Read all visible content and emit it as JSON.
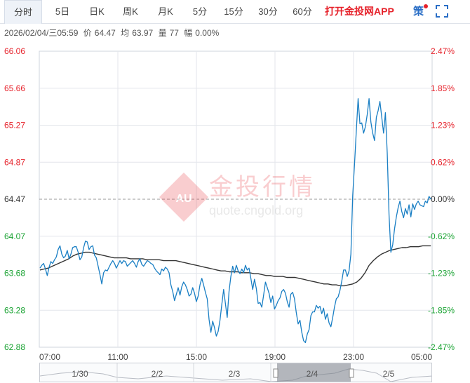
{
  "tabs": [
    {
      "label": "分时",
      "active": true
    },
    {
      "label": "5日",
      "active": false
    },
    {
      "label": "日K",
      "active": false
    },
    {
      "label": "周K",
      "active": false
    },
    {
      "label": "月K",
      "active": false
    },
    {
      "label": "5分",
      "active": false
    },
    {
      "label": "15分",
      "active": false
    },
    {
      "label": "30分",
      "active": false
    },
    {
      "label": "60分",
      "active": false
    }
  ],
  "promo_label": "打开金投网APP",
  "strategy_label": "策",
  "info": {
    "datetime": "2026/02/04/三05:59",
    "price_label": "价",
    "price": "64.47",
    "avg_label": "均",
    "avg": "63.97",
    "vol_label": "量",
    "vol": "77",
    "change_label": "幅",
    "change": "0.00%"
  },
  "watermark": {
    "text": "金投行情",
    "url": "quote.cngold.org",
    "logo_text": "AU"
  },
  "colors": {
    "up": "#e6212a",
    "down": "#1aa333",
    "line": "#1a7fc4",
    "avg": "#333333",
    "grid": "#e3e6eb"
  },
  "chart_data": {
    "type": "line",
    "base_price": 64.47,
    "ylim": [
      62.88,
      66.06
    ],
    "y_ticks_left": [
      "66.06",
      "65.66",
      "65.27",
      "64.87",
      "64.47",
      "64.07",
      "63.68",
      "63.28",
      "62.88"
    ],
    "y_ticks_right": [
      "2.47%",
      "1.85%",
      "1.23%",
      "0.62%",
      "0.00%",
      "-0.62%",
      "-1.23%",
      "-1.85%",
      "-2.47%"
    ],
    "x_ticks": [
      "07:00",
      "11:00",
      "15:00",
      "19:00",
      "23:00",
      "05:00"
    ],
    "series": [
      {
        "values": [
          63.73,
          63.76,
          63.78,
          63.72,
          63.65,
          63.74,
          63.8,
          63.78,
          63.82,
          63.85,
          63.93,
          63.97,
          63.88,
          63.84,
          63.86,
          63.92,
          63.83,
          63.88,
          63.95,
          63.96,
          63.96,
          63.9,
          63.82,
          63.85,
          63.95,
          64.02,
          64.01,
          63.93,
          63.96,
          63.97,
          63.87,
          63.84,
          63.75,
          63.66,
          63.56,
          63.68,
          63.71,
          63.7,
          63.74,
          63.78,
          63.81,
          63.78,
          63.73,
          63.77,
          63.81,
          63.78,
          63.81,
          63.8,
          63.75,
          63.77,
          63.79,
          63.81,
          63.78,
          63.74,
          63.8,
          63.83,
          63.77,
          63.75,
          63.78,
          63.81,
          63.8,
          63.78,
          63.77,
          63.73,
          63.7,
          63.68,
          63.66,
          63.72,
          63.7,
          63.74,
          63.72,
          63.68,
          63.55,
          63.48,
          63.38,
          63.45,
          63.52,
          63.44,
          63.53,
          63.58,
          63.55,
          63.5,
          63.43,
          63.45,
          63.52,
          63.46,
          63.37,
          63.43,
          63.55,
          63.62,
          63.55,
          63.47,
          63.4,
          63.18,
          63.04,
          63.16,
          63.09,
          63.0,
          63.05,
          63.17,
          63.34,
          63.5,
          63.35,
          63.2,
          63.48,
          63.64,
          63.75,
          63.68,
          63.76,
          63.7,
          63.67,
          63.72,
          63.68,
          63.76,
          63.71,
          63.73,
          63.62,
          63.5,
          63.61,
          63.51,
          63.35,
          63.36,
          63.31,
          63.44,
          63.58,
          63.52,
          63.46,
          63.36,
          63.43,
          63.29,
          63.33,
          63.38,
          63.41,
          63.48,
          63.5,
          63.46,
          63.37,
          63.31,
          63.45,
          63.47,
          63.4,
          63.25,
          63.13,
          63.17,
          63.04,
          62.95,
          62.93,
          63.02,
          63.07,
          63.22,
          63.26,
          63.26,
          63.33,
          63.3,
          63.32,
          63.24,
          63.3,
          63.18,
          63.24,
          63.14,
          63.1,
          63.2,
          63.31,
          63.4,
          63.42,
          63.49,
          63.59,
          63.71,
          63.71,
          63.64,
          63.7,
          63.88,
          64.51,
          64.85,
          65.2,
          65.55,
          65.28,
          65.29,
          65.18,
          65.25,
          65.38,
          65.55,
          65.3,
          65.18,
          65.1,
          65.35,
          65.42,
          65.52,
          65.35,
          65.18,
          65.4,
          64.97,
          64.3,
          63.9,
          63.98,
          64.15,
          64.28,
          64.38,
          64.45,
          64.34,
          64.27,
          64.37,
          64.31,
          64.41,
          64.28,
          64.42,
          64.36,
          64.42,
          64.45,
          64.41,
          64.4,
          64.39,
          64.45,
          64.43,
          64.5,
          64.47
        ]
      },
      {
        "values": [
          63.71,
          63.72,
          63.73,
          63.75,
          63.77,
          63.79,
          63.81,
          63.83,
          63.86,
          63.88,
          63.89,
          63.9,
          63.9,
          63.89,
          63.88,
          63.87,
          63.86,
          63.85,
          63.84,
          63.84,
          63.84,
          63.84,
          63.83,
          63.83,
          63.83,
          63.83,
          63.82,
          63.82,
          63.82,
          63.82,
          63.81,
          63.81,
          63.81,
          63.81,
          63.8,
          63.79,
          63.78,
          63.77,
          63.76,
          63.75,
          63.74,
          63.73,
          63.72,
          63.71,
          63.7,
          63.7,
          63.69,
          63.69,
          63.69,
          63.68,
          63.68,
          63.68,
          63.67,
          63.67,
          63.66,
          63.65,
          63.65,
          63.64,
          63.64,
          63.64,
          63.63,
          63.63,
          63.63,
          63.62,
          63.61,
          63.6,
          63.59,
          63.58,
          63.57,
          63.56,
          63.56,
          63.55,
          63.55,
          63.54,
          63.54,
          63.55,
          63.56,
          63.58,
          63.62,
          63.68,
          63.76,
          63.81,
          63.85,
          63.88,
          63.9,
          63.92,
          63.93,
          63.94,
          63.95,
          63.95,
          63.96,
          63.96,
          63.96,
          63.97,
          63.97,
          63.97
        ]
      }
    ]
  },
  "navigator": {
    "labels": [
      "1/30",
      "2/2",
      "2/3",
      "2/4",
      "2/5"
    ]
  }
}
